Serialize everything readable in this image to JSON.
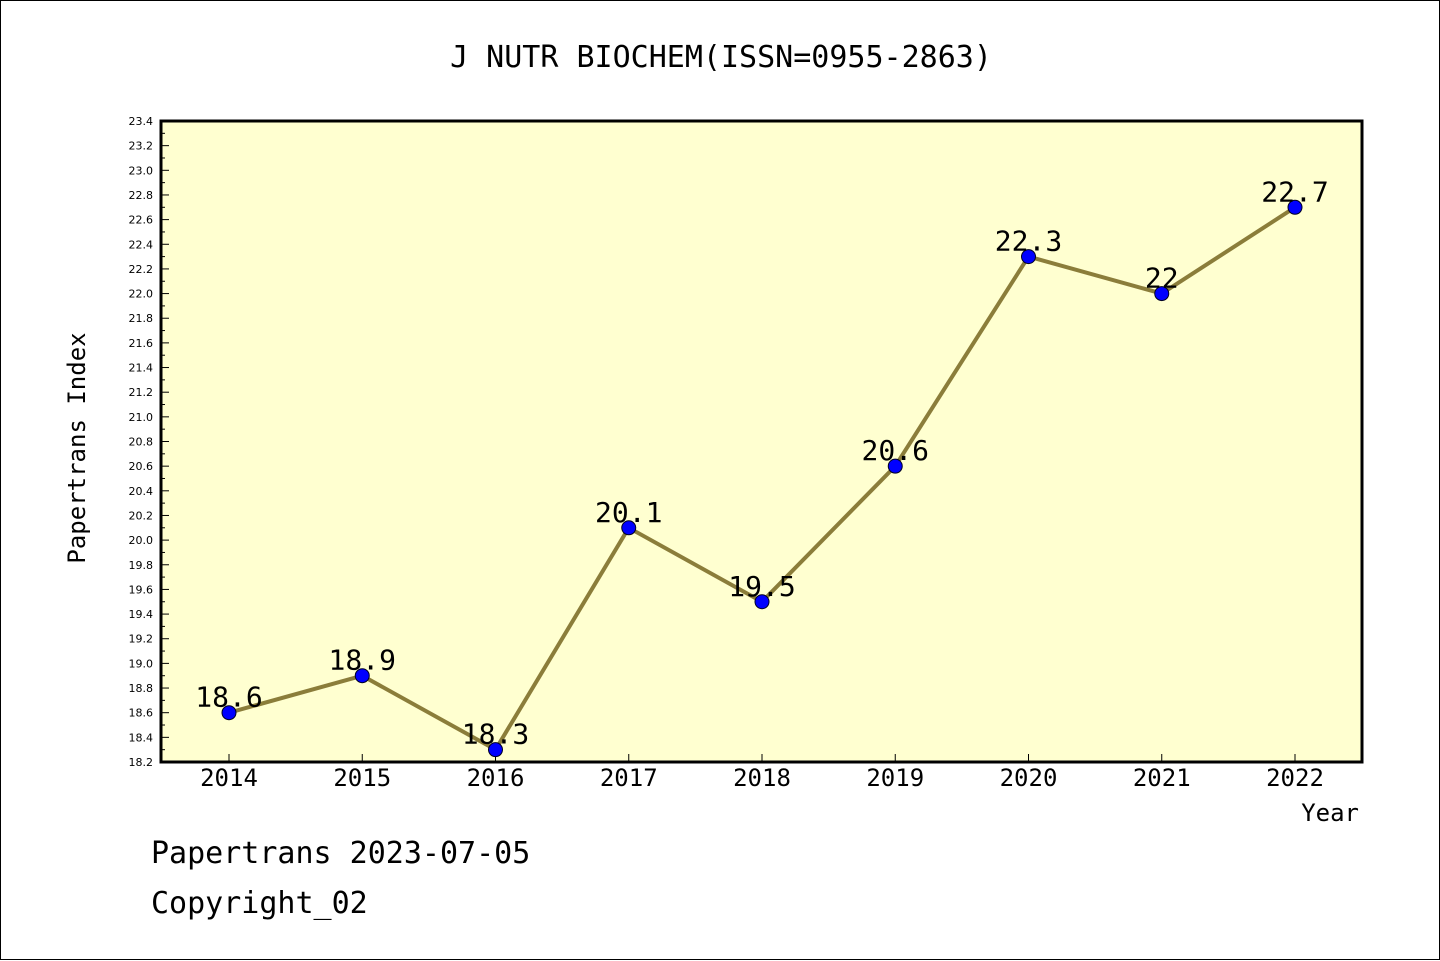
{
  "chart_data": {
    "type": "line",
    "title": "J NUTR BIOCHEM(ISSN=0955-2863)",
    "xlabel": "Year",
    "ylabel": "Papertrans Index",
    "x": [
      "2014",
      "2015",
      "2016",
      "2017",
      "2018",
      "2019",
      "2020",
      "2021",
      "2022"
    ],
    "series": [
      {
        "values": [
          18.6,
          18.9,
          18.3,
          20.1,
          19.5,
          20.6,
          22.3,
          22.0,
          22.7
        ],
        "labels": [
          "18.6",
          "18.9",
          "18.3",
          "20.1",
          "19.5",
          "20.6",
          "22.3",
          "22",
          "22.7"
        ],
        "line_color": "#8b7d3a",
        "marker_color": "#0000ff"
      }
    ],
    "ylim": [
      18.2,
      23.4
    ],
    "y_ticks": [
      "18.2",
      "18.4",
      "18.6",
      "18.8",
      "19.0",
      "19.2",
      "19.4",
      "19.6",
      "19.8",
      "20.0",
      "20.2",
      "20.4",
      "20.6",
      "20.8",
      "21.0",
      "21.2",
      "21.4",
      "21.6",
      "21.8",
      "22.0",
      "22.2",
      "22.4",
      "22.6",
      "22.8",
      "23.0",
      "23.2",
      "23.4"
    ],
    "plot_background": "#ffffd0",
    "grid": false
  },
  "footer": {
    "line1": "Papertrans 2023-07-05",
    "line2": "Copyright_02"
  }
}
